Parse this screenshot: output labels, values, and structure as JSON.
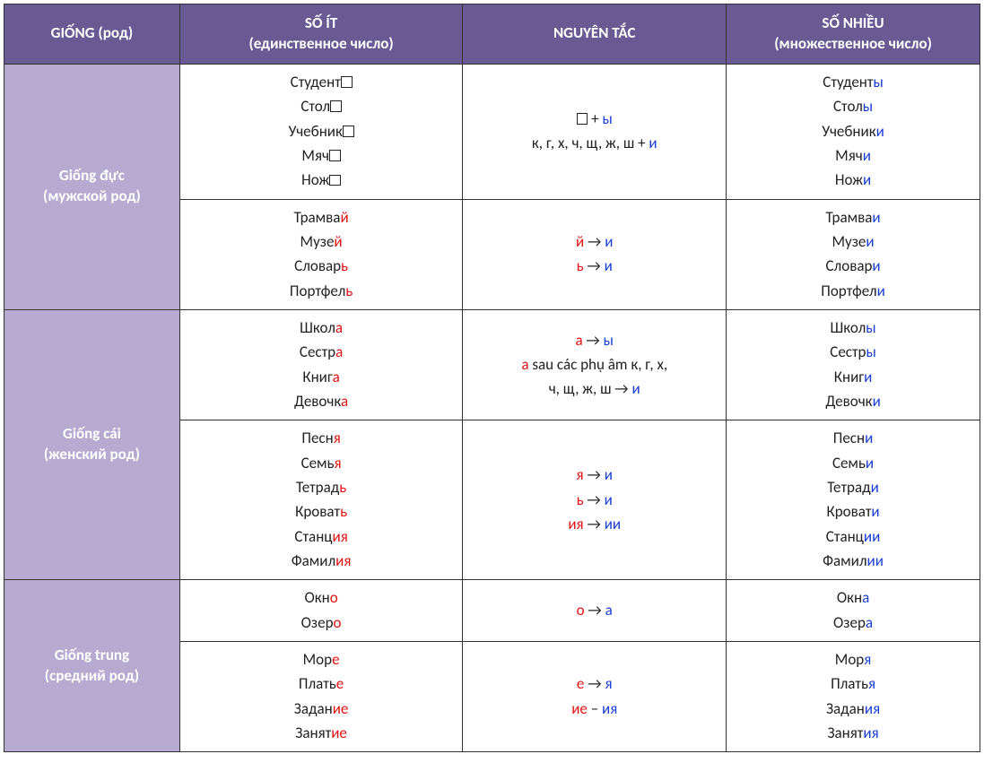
{
  "colors": {
    "header_bg": "#6a5a94",
    "gender_bg": "#b6aad0",
    "header_fg": "#ffffff",
    "border": "#333333",
    "highlight_red": "#e31313",
    "highlight_blue": "#1a3fd6",
    "text": "#222222"
  },
  "headers": {
    "col1_top": "GIỐNG",
    "col1_paren": "(род)",
    "col2_top": "SỐ ÍT",
    "col2_sub": "(единственное число)",
    "col3": "NGUYÊN TẮC",
    "col4_top": "SỐ NHIỀU",
    "col4_sub": "(множественное число)"
  },
  "genders": {
    "masc": {
      "title": "Giống đực",
      "sub": "(мужской род)"
    },
    "fem": {
      "title": "Giống cái",
      "sub": "(женский род)"
    },
    "neut": {
      "title": "Giống trung",
      "sub": "(средний род)"
    }
  },
  "rows": {
    "m1": {
      "singular": [
        {
          "stem": "Студент",
          "box": true
        },
        {
          "stem": "Стол",
          "box": true
        },
        {
          "stem": "Учебник",
          "box": true
        },
        {
          "stem": "Мяч",
          "box": true
        },
        {
          "stem": "Нож",
          "box": true
        }
      ],
      "rule": [
        [
          {
            "t": "",
            "box": true
          },
          {
            "t": " + ",
            "c": "n"
          },
          {
            "t": "ы",
            "c": "blue"
          }
        ],
        [
          {
            "t": "к, г, х, ч, щ, ж, ш + ",
            "c": "n"
          },
          {
            "t": "и",
            "c": "blue"
          }
        ]
      ],
      "plural": [
        {
          "stem": "Студент",
          "end": "ы",
          "c": "blue"
        },
        {
          "stem": "Стол",
          "end": "ы",
          "c": "blue"
        },
        {
          "stem": "Учебник",
          "end": "и",
          "c": "blue"
        },
        {
          "stem": "Мяч",
          "end": "и",
          "c": "blue"
        },
        {
          "stem": "Нож",
          "end": "и",
          "c": "blue"
        }
      ]
    },
    "m2": {
      "singular": [
        {
          "stem": "Трамва",
          "end": "й",
          "c": "red"
        },
        {
          "stem": "Музе",
          "end": "й",
          "c": "red"
        },
        {
          "stem": "Словар",
          "end": "ь",
          "c": "red"
        },
        {
          "stem": "Портфел",
          "end": "ь",
          "c": "red"
        }
      ],
      "rule": [
        [
          {
            "t": "й",
            "c": "red"
          },
          {
            "t": " → ",
            "c": "n"
          },
          {
            "t": "и",
            "c": "blue"
          }
        ],
        [
          {
            "t": "ь",
            "c": "red"
          },
          {
            "t": " → ",
            "c": "n"
          },
          {
            "t": "и",
            "c": "blue"
          }
        ]
      ],
      "plural": [
        {
          "stem": "Трамва",
          "end": "и",
          "c": "blue"
        },
        {
          "stem": "Музе",
          "end": "и",
          "c": "blue"
        },
        {
          "stem": "Словар",
          "end": "и",
          "c": "blue"
        },
        {
          "stem": "Портфел",
          "end": "и",
          "c": "blue"
        }
      ]
    },
    "f1": {
      "singular": [
        {
          "stem": "Школ",
          "end": "а",
          "c": "red"
        },
        {
          "stem": "Сестр",
          "end": "а",
          "c": "red"
        },
        {
          "stem": "Книг",
          "end": "а",
          "c": "red"
        },
        {
          "stem": "Девочк",
          "end": "а",
          "c": "red"
        }
      ],
      "rule": [
        [
          {
            "t": "а",
            "c": "red"
          },
          {
            "t": " → ",
            "c": "n"
          },
          {
            "t": "ы",
            "c": "blue"
          }
        ],
        [
          {
            "t": "а",
            "c": "red"
          },
          {
            "t": " sau các phụ âm к, г, х,",
            "c": "n"
          }
        ],
        [
          {
            "t": "ч, щ, ж, ш → ",
            "c": "n"
          },
          {
            "t": "и",
            "c": "blue"
          }
        ]
      ],
      "plural": [
        {
          "stem": "Школ",
          "end": "ы",
          "c": "blue"
        },
        {
          "stem": "Сестр",
          "end": "ы",
          "c": "blue"
        },
        {
          "stem": "Книг",
          "end": "и",
          "c": "blue"
        },
        {
          "stem": "Девочк",
          "end": "и",
          "c": "blue"
        }
      ]
    },
    "f2": {
      "singular": [
        {
          "stem": "Песн",
          "end": "я",
          "c": "red"
        },
        {
          "stem": "Семь",
          "end": "я",
          "c": "red"
        },
        {
          "stem": "Тетрад",
          "end": "ь",
          "c": "red"
        },
        {
          "stem": "Кроват",
          "end": "ь",
          "c": "red"
        },
        {
          "stem": "Станц",
          "end": "ия",
          "c": "red"
        },
        {
          "stem": "Фамил",
          "end": "ия",
          "c": "red"
        }
      ],
      "rule": [
        [
          {
            "t": "я",
            "c": "red"
          },
          {
            "t": " → ",
            "c": "n"
          },
          {
            "t": "и",
            "c": "blue"
          }
        ],
        [
          {
            "t": "ь",
            "c": "red"
          },
          {
            "t": " → ",
            "c": "n"
          },
          {
            "t": "и",
            "c": "blue"
          }
        ],
        [
          {
            "t": "ия",
            "c": "red"
          },
          {
            "t": " → ",
            "c": "n"
          },
          {
            "t": "ии",
            "c": "blue"
          }
        ]
      ],
      "plural": [
        {
          "stem": "Песн",
          "end": "и",
          "c": "blue"
        },
        {
          "stem": "Семь",
          "end": "и",
          "c": "blue"
        },
        {
          "stem": "Тетрад",
          "end": "и",
          "c": "blue"
        },
        {
          "stem": "Кроват",
          "end": "и",
          "c": "blue"
        },
        {
          "stem": "Станц",
          "end": "ии",
          "c": "blue"
        },
        {
          "stem": "Фамил",
          "end": "ии",
          "c": "blue"
        }
      ]
    },
    "n1": {
      "singular": [
        {
          "stem": "Окн",
          "end": "о",
          "c": "red"
        },
        {
          "stem": "Озер",
          "end": "о",
          "c": "red"
        }
      ],
      "rule": [
        [
          {
            "t": "о",
            "c": "red"
          },
          {
            "t": " → ",
            "c": "n"
          },
          {
            "t": "а",
            "c": "blue"
          }
        ]
      ],
      "plural": [
        {
          "stem": "Окн",
          "end": "а",
          "c": "blue"
        },
        {
          "stem": "Озер",
          "end": "а",
          "c": "blue"
        }
      ]
    },
    "n2": {
      "singular": [
        {
          "stem": "Мор",
          "end": "е",
          "c": "red"
        },
        {
          "stem": "Плать",
          "end": "е",
          "c": "red"
        },
        {
          "stem": "Задан",
          "end": "ие",
          "c": "red"
        },
        {
          "stem": "Занят",
          "end": "ие",
          "c": "red"
        }
      ],
      "rule": [
        [
          {
            "t": "е",
            "c": "red"
          },
          {
            "t": " → ",
            "c": "n"
          },
          {
            "t": "я",
            "c": "blue"
          }
        ],
        [
          {
            "t": "ие",
            "c": "red"
          },
          {
            "t": " – ",
            "c": "n"
          },
          {
            "t": "ия",
            "c": "blue"
          }
        ]
      ],
      "plural": [
        {
          "stem": "Мор",
          "end": "я",
          "c": "blue"
        },
        {
          "stem": "Плать",
          "end": "я",
          "c": "blue"
        },
        {
          "stem": "Задан",
          "end": "ия",
          "c": "blue"
        },
        {
          "stem": "Занят",
          "end": "ия",
          "c": "blue"
        }
      ]
    }
  }
}
